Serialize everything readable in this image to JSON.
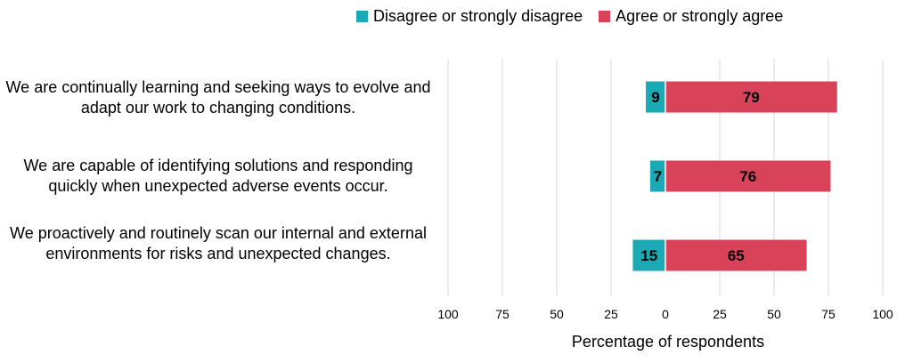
{
  "chart_data": {
    "type": "bar",
    "orientation": "horizontal-diverging",
    "categories": [
      "We are continually learning and seeking ways to evolve and adapt our work to changing conditions.",
      "We are capable of identifying solutions and responding quickly when unexpected adverse events occur.",
      "We proactively and routinely scan our internal and external environments for risks and unexpected changes."
    ],
    "series": [
      {
        "name": "Disagree or strongly disagree",
        "values": [
          9,
          7,
          15
        ],
        "color": "#1AA9B5",
        "direction": "negative"
      },
      {
        "name": "Agree or strongly agree",
        "values": [
          79,
          76,
          65
        ],
        "color": "#D9435A",
        "direction": "positive"
      }
    ],
    "xlabel": "Percentage  of respondents",
    "xlim": [
      -100,
      100
    ],
    "tick_values": [
      -100,
      -75,
      -50,
      -25,
      0,
      25,
      50,
      75,
      100
    ],
    "tick_labels": [
      "100",
      "75",
      "50",
      "25",
      "0",
      "25",
      "50",
      "75",
      "100"
    ],
    "grid": true,
    "legend_position": "top"
  }
}
